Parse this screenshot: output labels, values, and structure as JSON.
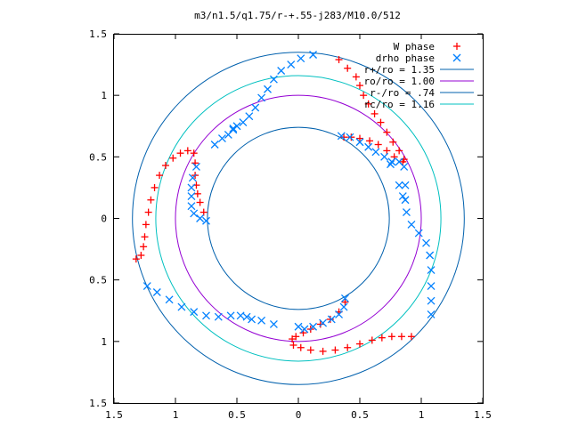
{
  "chart_data": {
    "type": "scatter",
    "title": "m3/n1.5/q1.75/r-+.55-j283/M10.0/512",
    "xlim": [
      -1.5,
      1.5
    ],
    "ylim": [
      -1.5,
      1.5
    ],
    "x_ticks": [
      -1.5,
      -1,
      -0.5,
      0,
      0.5,
      1,
      1.5
    ],
    "y_ticks": [
      -1.5,
      -1,
      -0.5,
      0,
      0.5,
      1,
      1.5
    ],
    "x_tick_labels": [
      "1.5",
      "1",
      "0.5",
      "0",
      "0.5",
      "1",
      "1.5"
    ],
    "y_tick_labels": [
      "1.5",
      "1",
      "0.5",
      "0",
      "0.5",
      "1",
      "1.5"
    ],
    "legend_position": "top-right",
    "colors": {
      "w_phase": "#ff0000",
      "drho_phase": "#0080ff",
      "r_plus": "#0060ad",
      "r_o": "#9400d3",
      "r_minus": "#0060ad",
      "r_c": "#00c0c0"
    },
    "circles": [
      {
        "name": "r+/ro = 1.35",
        "r": 1.35,
        "color": "#0060ad"
      },
      {
        "name": "ro/ro = 1.00",
        "r": 1.0,
        "color": "#9400d3"
      },
      {
        "name": "r-/ro = .74",
        "r": 0.74,
        "color": "#0060ad"
      },
      {
        "name": "rc/ro = 1.16",
        "r": 1.16,
        "color": "#00c0c0"
      }
    ],
    "series": [
      {
        "name": "W phase",
        "marker": "plus",
        "color": "#ff0000",
        "segments": [
          [
            [
              0.33,
              1.29
            ],
            [
              0.4,
              1.22
            ],
            [
              0.47,
              1.15
            ],
            [
              0.5,
              1.08
            ],
            [
              0.53,
              1.0
            ],
            [
              0.57,
              0.93
            ],
            [
              0.62,
              0.85
            ],
            [
              0.67,
              0.78
            ],
            [
              0.72,
              0.7
            ],
            [
              0.77,
              0.62
            ],
            [
              0.82,
              0.55
            ],
            [
              0.86,
              0.48
            ],
            [
              0.85,
              0.46
            ],
            [
              0.78,
              0.5
            ],
            [
              0.72,
              0.55
            ],
            [
              0.65,
              0.6
            ],
            [
              0.58,
              0.63
            ],
            [
              0.5,
              0.65
            ],
            [
              0.43,
              0.66
            ],
            [
              0.37,
              0.66
            ]
          ],
          [
            [
              -1.32,
              -0.33
            ],
            [
              -1.28,
              -0.3
            ],
            [
              -1.26,
              -0.23
            ],
            [
              -1.25,
              -0.15
            ],
            [
              -1.24,
              -0.05
            ],
            [
              -1.22,
              0.05
            ],
            [
              -1.2,
              0.15
            ],
            [
              -1.17,
              0.25
            ],
            [
              -1.13,
              0.35
            ],
            [
              -1.08,
              0.43
            ],
            [
              -1.02,
              0.49
            ],
            [
              -0.96,
              0.53
            ],
            [
              -0.9,
              0.55
            ],
            [
              -0.85,
              0.53
            ],
            [
              -0.84,
              0.45
            ],
            [
              -0.84,
              0.35
            ],
            [
              -0.83,
              0.27
            ],
            [
              -0.82,
              0.2
            ],
            [
              -0.8,
              0.13
            ],
            [
              -0.77,
              0.05
            ]
          ],
          [
            [
              0.38,
              -0.68
            ],
            [
              0.33,
              -0.76
            ],
            [
              0.26,
              -0.82
            ],
            [
              0.18,
              -0.86
            ],
            [
              0.1,
              -0.9
            ],
            [
              0.04,
              -0.93
            ],
            [
              -0.02,
              -0.96
            ],
            [
              -0.05,
              -0.98
            ],
            [
              -0.04,
              -1.03
            ],
            [
              0.02,
              -1.05
            ],
            [
              0.1,
              -1.07
            ],
            [
              0.2,
              -1.08
            ],
            [
              0.3,
              -1.07
            ],
            [
              0.4,
              -1.05
            ],
            [
              0.5,
              -1.02
            ],
            [
              0.6,
              -0.99
            ],
            [
              0.68,
              -0.97
            ],
            [
              0.76,
              -0.96
            ],
            [
              0.84,
              -0.96
            ],
            [
              0.92,
              -0.96
            ]
          ]
        ]
      },
      {
        "name": "drho phase",
        "marker": "cross",
        "color": "#0080ff",
        "segments": [
          [
            [
              0.12,
              1.33
            ],
            [
              0.02,
              1.3
            ],
            [
              -0.06,
              1.25
            ],
            [
              -0.14,
              1.2
            ],
            [
              -0.2,
              1.13
            ],
            [
              -0.25,
              1.05
            ],
            [
              -0.3,
              0.98
            ],
            [
              -0.35,
              0.9
            ],
            [
              -0.4,
              0.83
            ],
            [
              -0.45,
              0.78
            ],
            [
              -0.5,
              0.75
            ],
            [
              -0.53,
              0.73
            ]
          ],
          [
            [
              0.35,
              0.67
            ],
            [
              0.42,
              0.66
            ],
            [
              0.5,
              0.62
            ],
            [
              0.57,
              0.58
            ],
            [
              0.63,
              0.54
            ],
            [
              0.7,
              0.5
            ],
            [
              0.76,
              0.46
            ],
            [
              0.82,
              0.46
            ],
            [
              0.86,
              0.42
            ],
            [
              0.87,
              0.27
            ],
            [
              0.87,
              0.15
            ],
            [
              0.88,
              0.05
            ],
            [
              0.92,
              -0.05
            ],
            [
              0.98,
              -0.12
            ],
            [
              1.04,
              -0.2
            ],
            [
              1.07,
              -0.3
            ],
            [
              1.08,
              -0.42
            ],
            [
              1.08,
              -0.55
            ],
            [
              1.08,
              -0.67
            ],
            [
              1.08,
              -0.78
            ]
          ],
          [
            [
              -0.83,
              0.42
            ],
            [
              -0.86,
              0.33
            ],
            [
              -0.87,
              0.25
            ],
            [
              -0.87,
              0.18
            ],
            [
              -0.87,
              0.1
            ],
            [
              -0.85,
              0.04
            ],
            [
              -0.8,
              0.0
            ],
            [
              -0.75,
              -0.02
            ]
          ],
          [
            [
              -1.23,
              -0.55
            ],
            [
              -1.15,
              -0.6
            ],
            [
              -1.05,
              -0.66
            ],
            [
              -0.95,
              -0.72
            ],
            [
              -0.85,
              -0.76
            ],
            [
              -0.75,
              -0.79
            ],
            [
              -0.65,
              -0.8
            ],
            [
              -0.55,
              -0.79
            ],
            [
              -0.47,
              -0.79
            ],
            [
              -0.42,
              -0.8
            ],
            [
              -0.38,
              -0.82
            ]
          ],
          [
            [
              0.38,
              -0.65
            ],
            [
              0.37,
              -0.72
            ],
            [
              0.33,
              -0.78
            ],
            [
              0.27,
              -0.82
            ],
            [
              0.2,
              -0.85
            ],
            [
              0.12,
              -0.88
            ],
            [
              0.05,
              -0.9
            ],
            [
              0.0,
              -0.88
            ]
          ],
          [
            [
              -0.68,
              0.6
            ],
            [
              -0.62,
              0.65
            ],
            [
              -0.57,
              0.68
            ],
            [
              -0.53,
              0.72
            ],
            [
              -0.3,
              -0.83
            ],
            [
              -0.2,
              -0.86
            ],
            [
              0.75,
              0.44
            ],
            [
              0.82,
              0.27
            ],
            [
              0.85,
              0.18
            ]
          ]
        ]
      }
    ]
  }
}
